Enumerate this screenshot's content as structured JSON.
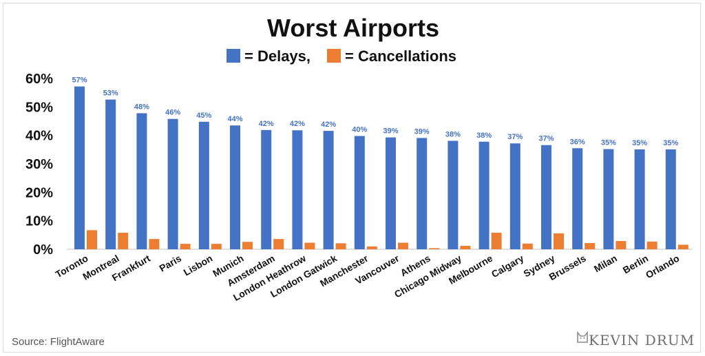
{
  "chart_data": {
    "type": "bar",
    "title": "Worst Airports",
    "legend": [
      {
        "label": "= Delays,",
        "color": "#4472c4"
      },
      {
        "label": "= Cancellations",
        "color": "#ed7d31"
      }
    ],
    "legend_position": "top",
    "categories": [
      "Toronto",
      "Montreal",
      "Frankfurt",
      "Paris",
      "Lisbon",
      "Munich",
      "Amsterdam",
      "London Heathrow",
      "London Gatwick",
      "Manchester",
      "Vancouver",
      "Athens",
      "Chicago Midway",
      "Melbourne",
      "Calgary",
      "Sydney",
      "Brussels",
      "Milan",
      "Berlin",
      "Orlando"
    ],
    "series": [
      {
        "color": "#4472c4",
        "values": [
          57.2,
          52.6,
          47.8,
          45.8,
          44.8,
          43.5,
          41.9,
          41.8,
          41.6,
          39.8,
          39.3,
          39.1,
          38.1,
          37.8,
          37.2,
          36.6,
          35.5,
          35.2,
          35.1,
          35.1
        ],
        "labels": [
          "57%",
          "53%",
          "48%",
          "46%",
          "45%",
          "44%",
          "42%",
          "42%",
          "42%",
          "40%",
          "39%",
          "39%",
          "38%",
          "38%",
          "37%",
          "37%",
          "36%",
          "35%",
          "35%",
          "35%"
        ]
      },
      {
        "color": "#ed7d31",
        "values": [
          6.7,
          5.8,
          3.6,
          1.9,
          1.9,
          2.6,
          3.6,
          2.3,
          2.1,
          1.0,
          2.3,
          0.4,
          1.2,
          5.8,
          2.0,
          5.6,
          2.2,
          2.9,
          2.7,
          1.6
        ]
      }
    ],
    "ylim": [
      0,
      60
    ],
    "yticks": [
      "0%",
      "10%",
      "20%",
      "30%",
      "40%",
      "50%",
      "60%"
    ],
    "grid": false
  },
  "source": "Source: FlightAware",
  "brand": "KEVIN DRUM",
  "brand_icon": "cat-icon"
}
